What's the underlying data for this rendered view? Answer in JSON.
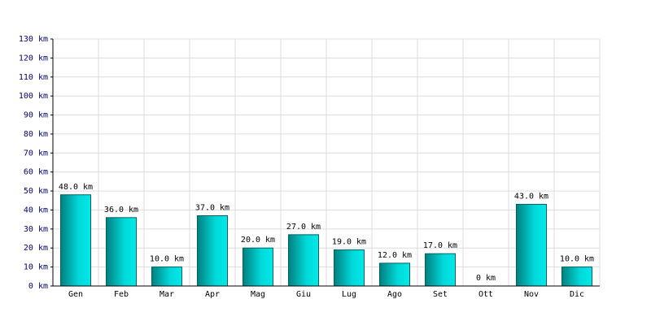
{
  "chart_data": {
    "type": "bar",
    "categories": [
      "Gen",
      "Feb",
      "Mar",
      "Apr",
      "Mag",
      "Giu",
      "Lug",
      "Ago",
      "Set",
      "Ott",
      "Nov",
      "Dic"
    ],
    "values": [
      48,
      36,
      10,
      37,
      20,
      27,
      19,
      12,
      17,
      0,
      43,
      10
    ],
    "value_labels": [
      "48.0 km",
      "36.0 km",
      "10.0 km",
      "37.0 km",
      "20.0 km",
      "27.0 km",
      "19.0 km",
      "12.0 km",
      "17.0 km",
      "0 km",
      "43.0 km",
      "10.0 km"
    ],
    "color": "#00c8c8",
    "ylim": [
      0,
      130
    ],
    "yticks": [
      {
        "value": 0,
        "label": "0 km"
      },
      {
        "value": 10,
        "label": "10 km"
      },
      {
        "value": 20,
        "label": "20 km"
      },
      {
        "value": 30,
        "label": "30 km"
      },
      {
        "value": 40,
        "label": "40 km"
      },
      {
        "value": 50,
        "label": "50 km"
      },
      {
        "value": 60,
        "label": "60 km"
      },
      {
        "value": 70,
        "label": "70 km"
      },
      {
        "value": 80,
        "label": "80 km"
      },
      {
        "value": 90,
        "label": "90 km"
      },
      {
        "value": 100,
        "label": "100 km"
      },
      {
        "value": 110,
        "label": "110 km"
      },
      {
        "value": 120,
        "label": "120 km"
      },
      {
        "value": 130,
        "label": "130 km"
      }
    ],
    "grid": true
  }
}
